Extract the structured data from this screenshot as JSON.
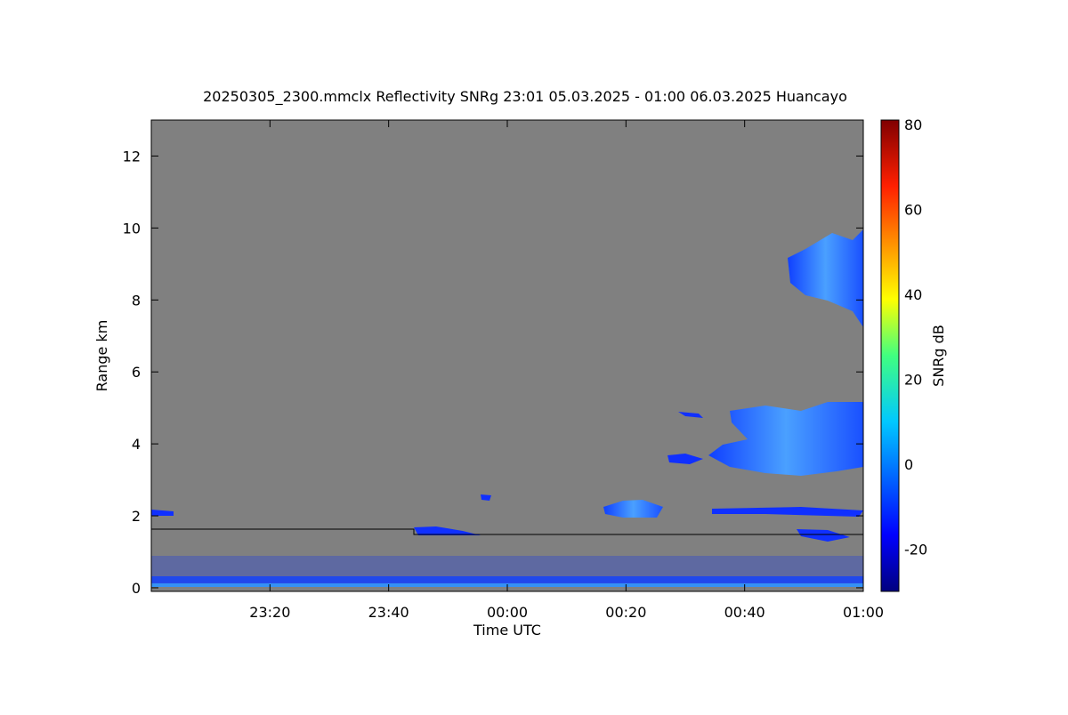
{
  "chart_data": {
    "type": "heatmap",
    "title": "20250305_2300.mmclx Reflectivity SNRg   23:01 05.03.2025 - 01:00 06.03.2025 Huancayo",
    "x_label": "Time UTC",
    "y_label": "Range km",
    "colorbar_label": "SNRg dB",
    "xlim": [
      0,
      120
    ],
    "xticks": [
      {
        "value": 20,
        "label": "23:20"
      },
      {
        "value": 40,
        "label": "23:40"
      },
      {
        "value": 60,
        "label": "00:00"
      },
      {
        "value": 80,
        "label": "00:20"
      },
      {
        "value": 100,
        "label": "00:40"
      },
      {
        "value": 120,
        "label": "01:00"
      }
    ],
    "ylim": [
      -0.1,
      13
    ],
    "yticks": [
      0,
      2,
      4,
      6,
      8,
      10,
      12
    ],
    "clim": [
      -30,
      81
    ],
    "cticks": [
      -20,
      0,
      20,
      40,
      60,
      80
    ],
    "background": "#808080"
  }
}
